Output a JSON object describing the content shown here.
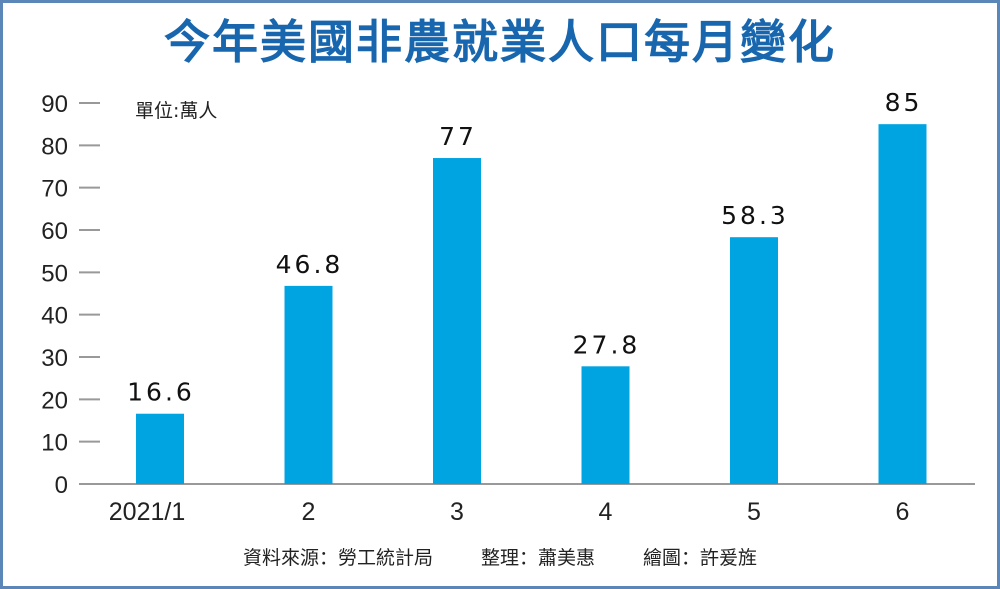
{
  "chart_data": {
    "type": "bar",
    "title": "今年美國非農就業人口每月變化",
    "unit_label": "單位:萬人",
    "categories": [
      "2021/1",
      "2",
      "3",
      "4",
      "5",
      "6"
    ],
    "values": [
      16.6,
      46.8,
      77,
      27.8,
      58.3,
      85
    ],
    "data_labels": [
      "16.6",
      "46.8",
      "77",
      "27.8",
      "58.3",
      "85"
    ],
    "y_ticks": [
      0,
      10,
      20,
      30,
      40,
      50,
      60,
      70,
      80,
      90
    ],
    "ylim": [
      0,
      90
    ],
    "grid": false,
    "bar_color": "#00a4e1",
    "title_color": "#1866ae"
  },
  "footer": {
    "source": "資料來源：勞工統計局",
    "editor": "整理：蕭美惠",
    "illustrator": "繪圖：許爰旌"
  }
}
